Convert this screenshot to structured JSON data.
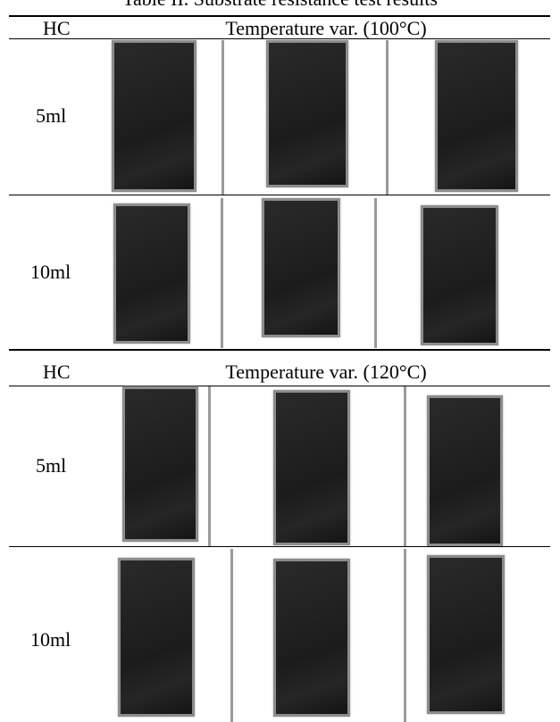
{
  "title": "Table II. Substrate resistance test results",
  "sections": [
    {
      "header": [
        "HC",
        "Temperature var. (100°C)"
      ],
      "rows": [
        {
          "label": "5ml"
        },
        {
          "label": "10ml"
        }
      ]
    },
    {
      "header": [
        "HC",
        "Temperature var. (120°C)"
      ],
      "rows": [
        {
          "label": "5ml"
        },
        {
          "label": "10ml"
        }
      ]
    }
  ]
}
